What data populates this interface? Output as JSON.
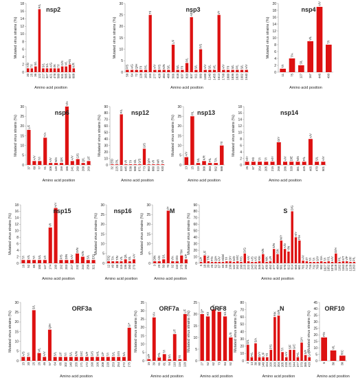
{
  "chart_data": [
    {
      "type": "bar",
      "title": "nsp2",
      "ylabel": "Mutated virus strains (%)",
      "xlabel": "Amino acid position",
      "ylim": [
        0,
        18
      ],
      "yticks": [
        0,
        2,
        4,
        6,
        8,
        10,
        12,
        14,
        16,
        18
      ],
      "categories": [
        "20",
        "25",
        "36",
        "122",
        "217",
        "327",
        "421",
        "478",
        "500",
        "531",
        "585",
        "597",
        "608"
      ],
      "values": [
        1,
        1,
        1.5,
        16.5,
        1,
        1,
        1,
        1,
        1,
        1.5,
        1.5,
        2,
        1
      ],
      "labels": [
        "Y/D",
        "T/I",
        "S/L",
        "P/L",
        "S/L",
        "S/L",
        "A/G",
        "I/K",
        "T/I",
        "G/S",
        "V/L",
        "P/S",
        "K/R"
      ]
    },
    {
      "type": "bar",
      "title": "nsp3",
      "ylabel": "Mutated virus strains (%)",
      "xlabel": "Amino acid position",
      "ylim": [
        0,
        30
      ],
      "yticks": [
        0,
        5,
        10,
        15,
        20,
        25,
        30
      ],
      "categories": [
        "58",
        "64",
        "72",
        "128",
        "183",
        "199",
        "277",
        "428",
        "484",
        "488",
        "566",
        "618",
        "637",
        "820",
        "837",
        "911",
        "989",
        "1100",
        "1240",
        "1455",
        "1613",
        "1798",
        "1800",
        "1836",
        "1829",
        "1902",
        "1940"
      ],
      "values": [
        1,
        1,
        1,
        1,
        1,
        25,
        1,
        1,
        1,
        1,
        12,
        1,
        1,
        4,
        24,
        1,
        10,
        1,
        1,
        1,
        25,
        1,
        1,
        1,
        1,
        1,
        1
      ],
      "labels": [
        "P/S",
        "A/G",
        "Q/H",
        "T/I",
        "P/L",
        "T/I",
        "A/V",
        "P/S",
        "K/N",
        "S/L",
        "L/F",
        "S/L",
        "T/I",
        "P/L",
        "A/D",
        "S/L",
        "P/S",
        "A/V",
        "S/L",
        "V/L",
        "I/T",
        "A/V",
        "T/I",
        "S/L",
        "P/L",
        "S/L",
        "A/V"
      ]
    },
    {
      "type": "bar",
      "title": "nsp4",
      "ylabel": "Mutated virus strains (%)",
      "xlabel": "Amino acid position",
      "ylim": [
        0,
        20
      ],
      "yticks": [
        0,
        2,
        4,
        6,
        8,
        10,
        12,
        14,
        16,
        18,
        20
      ],
      "categories": [
        "11",
        "75",
        "127",
        "167",
        "446",
        "490"
      ],
      "values": [
        1,
        4,
        2,
        9,
        19,
        8
      ],
      "labels": [
        "T/I",
        "T/A",
        "S/L",
        "V/L",
        "A/V",
        "T/I"
      ]
    },
    {
      "type": "bar",
      "title": "nsp6",
      "ylabel": "Mutated virus strains (%)",
      "xlabel": "Amino acid position",
      "ylim": [
        0,
        30
      ],
      "yticks": [
        0,
        5,
        10,
        15,
        20,
        25,
        30
      ],
      "categories": [
        "37",
        "60",
        "77",
        "91",
        "108",
        "149",
        "159",
        "186",
        "241",
        "260",
        "268",
        "269"
      ],
      "values": [
        18,
        2,
        2,
        14,
        1,
        1,
        1,
        30,
        2,
        3,
        1,
        2
      ],
      "labels": [
        "L/F",
        "A/V",
        "T/I",
        "T/A",
        "A/V",
        "N/S",
        "Q/K",
        "V/A",
        "A/V",
        "G/S",
        "Q/L",
        "L/F"
      ]
    },
    {
      "type": "bar",
      "title": "nsp12",
      "ylabel": "Mutated virus strains (%)",
      "xlabel": "Amino acid position",
      "ylim": [
        0,
        90
      ],
      "yticks": [
        0,
        10,
        20,
        30,
        40,
        50,
        60,
        70,
        80,
        90
      ],
      "categories": [
        "32",
        "225",
        "323",
        "445",
        "538",
        "588",
        "671",
        "773",
        "863",
        "880",
        "919",
        "920"
      ],
      "values": [
        1,
        1,
        78,
        1,
        1,
        1,
        1,
        25,
        1,
        1,
        1,
        1
      ],
      "labels": [
        "E/D",
        "P/L",
        "P/L",
        "V/I",
        "T/I",
        "S/L",
        "G/S",
        "G/S",
        "Q/H",
        "V/I",
        "M/I",
        "V/I"
      ]
    },
    {
      "type": "bar",
      "title": "nsp13",
      "ylabel": "Mutated virus strains (%)",
      "xlabel": "Amino acid position",
      "ylim": [
        0,
        30
      ],
      "yticks": [
        0,
        5,
        10,
        15,
        20,
        25,
        30
      ],
      "categories": [
        "13",
        "15",
        "119",
        "300",
        "383",
        "562",
        "588"
      ],
      "values": [
        4,
        25,
        1,
        2,
        1,
        1,
        10
      ],
      "labels": [
        "A/V",
        "P/L",
        "S/L",
        "K/R",
        "P/L",
        "T/A",
        "T/I"
      ]
    },
    {
      "type": "bar",
      "title": "nsp14",
      "ylabel": "Mutated virus strains (%)",
      "xlabel": "Amino acid position",
      "ylim": [
        0,
        18
      ],
      "yticks": [
        0,
        2,
        4,
        6,
        8,
        10,
        12,
        14,
        16,
        18
      ],
      "categories": [
        "26",
        "87",
        "154",
        "205",
        "215",
        "268",
        "286",
        "320",
        "381",
        "425",
        "465",
        "470",
        "501"
      ],
      "values": [
        1,
        1,
        1,
        1,
        1,
        7,
        1,
        1,
        1,
        1,
        8,
        1,
        1
      ],
      "labels": [
        "H/Y",
        "R/I",
        "T/I",
        "T/I",
        "H/Y",
        "D/Y",
        "A/V",
        "D/E",
        "N/S",
        "P/L",
        "A/V",
        "S/L",
        "A/V"
      ]
    },
    {
      "type": "bar",
      "title": "nsp15",
      "ylabel": "Mutated virus strains (%)",
      "xlabel": "Amino acid position",
      "ylim": [
        0,
        18
      ],
      "yticks": [
        0,
        2,
        4,
        6,
        8,
        10,
        12,
        14,
        16,
        18
      ],
      "categories": [
        "16",
        "52",
        "85",
        "100",
        "147",
        "174",
        "190",
        "192",
        "203",
        "217",
        "232",
        "244",
        "258",
        "321"
      ],
      "values": [
        1,
        1,
        1,
        1,
        1,
        11,
        17,
        1,
        1,
        1,
        3,
        2,
        1,
        1
      ],
      "labels": [
        "T/I",
        "V/L",
        "T/I",
        "S/L",
        "V/I",
        "V/I",
        "H/Y",
        "P/S",
        "D/N",
        "A/V",
        "D/N",
        "K/N",
        "S/L",
        "E/Q"
      ]
    },
    {
      "type": "bar",
      "title": "nsp16",
      "ylabel": "Mutated virus strains (%)",
      "xlabel": "Amino acid position",
      "ylim": [
        0,
        30
      ],
      "yticks": [
        0,
        5,
        10,
        15,
        20,
        25,
        30
      ],
      "categories": [
        "12",
        "49",
        "88",
        "115",
        "136",
        "150",
        "279"
      ],
      "values": [
        1,
        1,
        1,
        1,
        2,
        1,
        2
      ],
      "labels": [
        "E/Q",
        "T/A",
        "T/N",
        "V/L",
        "Q/L",
        "S/L",
        "A/V"
      ]
    },
    {
      "type": "bar",
      "title": "M",
      "ylabel": "Mutated virus strains (%)",
      "xlabel": "Amino acid position",
      "ylim": [
        0,
        30
      ],
      "yticks": [
        0,
        5,
        10,
        15,
        20,
        25,
        30
      ],
      "categories": [
        "3",
        "29",
        "50",
        "70",
        "92",
        "110",
        "175",
        "190"
      ],
      "values": [
        1,
        1,
        2,
        27,
        1,
        1,
        4,
        2
      ],
      "labels": [
        "D/N",
        "A/G",
        "S/L",
        "I/T",
        "V/A",
        "D/G",
        "T/M",
        "S/F"
      ]
    },
    {
      "type": "bar",
      "title": "S",
      "ylabel": "Mutated virus strains (%)",
      "xlabel": "Amino acid position",
      "ylim": [
        0,
        90
      ],
      "yticks": [
        0,
        10,
        20,
        30,
        40,
        50,
        60,
        70,
        80,
        90
      ],
      "categories": [
        "5",
        "18",
        "20",
        "26",
        "52",
        "67",
        "69",
        "95",
        "138",
        "142",
        "152",
        "190",
        "215",
        "222",
        "243",
        "262",
        "346",
        "417",
        "439",
        "452",
        "477",
        "484",
        "501",
        "570",
        "612",
        "614",
        "655",
        "681",
        "701",
        "712",
        "716",
        "732",
        "769",
        "982",
        "1027",
        "1052",
        "1078",
        "1118",
        "1162",
        "1163",
        "1176",
        "1228",
        "1263"
      ],
      "values": [
        2,
        12,
        3,
        2,
        2,
        2,
        2,
        3,
        3,
        2,
        3,
        2,
        15,
        3,
        2,
        2,
        3,
        14,
        2,
        3,
        22,
        14,
        35,
        22,
        18,
        80,
        40,
        35,
        4,
        3,
        2,
        2,
        2,
        3,
        2,
        3,
        2,
        15,
        2,
        3,
        3,
        2,
        2
      ],
      "labels": [
        "L/F",
        "L/F",
        "T/N",
        "P/S",
        "Q/H",
        "A/V",
        "H/del",
        "T/I",
        "D/Y",
        "G/D",
        "W/C",
        "R/S",
        "D/G",
        "A/V",
        "A/S",
        "A/S",
        "R/K",
        "K/N",
        "N/K",
        "L/R",
        "S/N",
        "E/K",
        "N/Y",
        "A/D",
        "Y/N",
        "D/G",
        "H/Y",
        "P/H",
        "A/V",
        "I/T",
        "T/I",
        "T/I",
        "G/V",
        "S/A",
        "T/I",
        "F/L",
        "A/V",
        "D/H",
        "P/L",
        "K/T",
        "V/F",
        "V/F",
        "P/L"
      ]
    },
    {
      "type": "bar",
      "title": "ORF3a",
      "ylabel": "Mutated virus strains (%)",
      "xlabel": "Amino acid position",
      "ylim": [
        0,
        30
      ],
      "yticks": [
        0,
        5,
        10,
        15,
        20,
        25,
        30
      ],
      "categories": [
        "15",
        "20",
        "25",
        "26",
        "46",
        "57",
        "64",
        "85",
        "102",
        "140",
        "155",
        "171",
        "172",
        "190",
        "196",
        "208",
        "220",
        "253",
        "254",
        "272",
        "275"
      ],
      "values": [
        2,
        2,
        26,
        4,
        2,
        16,
        2,
        2,
        2,
        2,
        2,
        2,
        2,
        2,
        2,
        2,
        2,
        2,
        2,
        2,
        17
      ],
      "labels": [
        "A/S",
        "T/I",
        "S/L",
        "V/L",
        "A/V",
        "Q/H",
        "S/L",
        "L/F",
        "T/I",
        "S/L",
        "K/N",
        "G/C",
        "S/F",
        "G/S",
        "W/L",
        "L/F",
        "T/I",
        "S/L",
        "G/S",
        "S/L",
        "G/*"
      ]
    },
    {
      "type": "bar",
      "title": "ORF7a",
      "ylabel": "Mutated virus strains (%)",
      "xlabel": "Amino acid position",
      "ylim": [
        0,
        35
      ],
      "yticks": [
        0,
        5,
        10,
        15,
        20,
        25,
        30,
        35
      ],
      "categories": [
        "15",
        "39",
        "61",
        "81",
        "94",
        "110",
        "116",
        "120"
      ],
      "values": [
        1,
        26,
        2,
        4,
        1,
        16,
        1,
        28
      ],
      "labels": [
        "V/F",
        "V/A",
        "P/L",
        "T/I",
        "S/L",
        "L/F",
        "T/I",
        "L/F"
      ]
    },
    {
      "type": "bar",
      "title": "ORF8",
      "ylabel": "Mutated virus strains (%)",
      "xlabel": "Amino acid position",
      "ylim": [
        0,
        25
      ],
      "yticks": [
        0,
        5,
        10,
        15,
        20,
        25
      ],
      "categories": [
        "27",
        "52",
        "62",
        "73",
        "84",
        "92"
      ],
      "values": [
        20,
        19,
        22,
        21,
        19,
        10
      ],
      "labels": [
        "Q/*",
        "R/I",
        "V/L",
        "Y/C",
        "S/L",
        "L/S"
      ]
    },
    {
      "type": "bar",
      "title": "N",
      "ylabel": "Mutated virus strains (%)",
      "xlabel": "Amino acid position",
      "ylim": [
        0,
        80
      ],
      "yticks": [
        0,
        10,
        20,
        30,
        40,
        50,
        60,
        70,
        80
      ],
      "categories": [
        "3",
        "13",
        "30",
        "80",
        "140",
        "194",
        "199",
        "203",
        "204",
        "205",
        "220",
        "235",
        "344",
        "377",
        "379",
        "385",
        "416"
      ],
      "values": [
        22,
        5,
        24,
        5,
        5,
        5,
        15,
        60,
        62,
        12,
        5,
        15,
        15,
        5,
        25,
        8,
        5
      ],
      "labels": [
        "D/L",
        "P/L",
        "S/A",
        "D/Y",
        "L/F",
        "T/I",
        "P/S",
        "R/K",
        "G/R",
        "T/I",
        "A/V",
        "S/F",
        "G/C",
        "P/L",
        "D/Y",
        "S/F",
        "G/C"
      ]
    },
    {
      "type": "bar",
      "title": "ORF10",
      "ylabel": "Mutated virus strains (%)",
      "xlabel": "Amino acid position",
      "ylim": [
        0,
        45
      ],
      "yticks": [
        0,
        5,
        10,
        15,
        20,
        25,
        30,
        35,
        40,
        45
      ],
      "categories": [
        "6",
        "30",
        "38"
      ],
      "values": [
        18,
        8,
        4
      ],
      "labels": [
        "P/S",
        "V/L",
        "R/C"
      ]
    }
  ],
  "colors": {
    "bar": "#dd1111",
    "axis": "#999999",
    "text": "#222222"
  }
}
